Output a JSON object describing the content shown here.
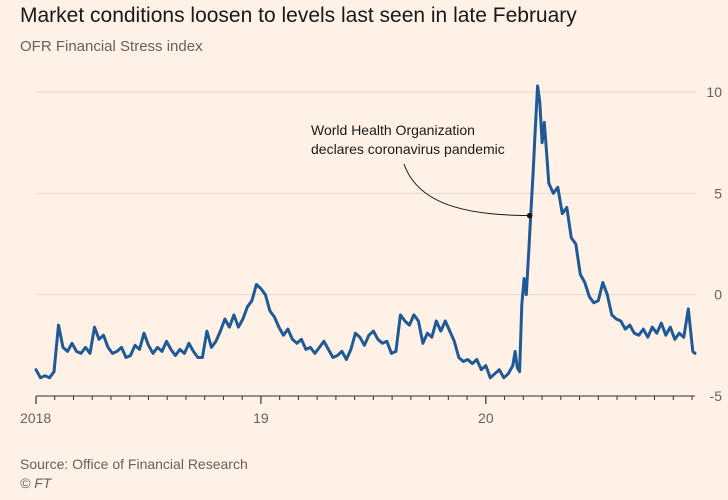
{
  "title": "Market conditions loosen to levels last seen in late February",
  "subtitle": "OFR Financial Stress index",
  "source": "Source: Office of Financial Research",
  "credit": "© FT",
  "colors": {
    "background": "#fff1e5",
    "line": "#1f5a96",
    "grid": "#e3d6c8",
    "text": "#66605c"
  },
  "chart_data": {
    "type": "line",
    "title": "Market conditions loosen to levels last seen in late February",
    "subtitle": "OFR Financial Stress index",
    "xlabel": "",
    "ylabel": "",
    "ylim": [
      -5,
      10
    ],
    "xlim": [
      2018.0,
      2020.93
    ],
    "yticks": [
      10,
      5,
      0,
      -5
    ],
    "xticks": [
      {
        "value": 2018,
        "label": "2018"
      },
      {
        "value": 2019,
        "label": "19"
      },
      {
        "value": 2020,
        "label": "20"
      }
    ],
    "grid": true,
    "y_axis_side": "right",
    "annotation": {
      "lines": [
        "World Health Organization",
        "declares coronavirus pandemic"
      ],
      "x": 2020.195,
      "y": 3.9
    },
    "series": [
      {
        "values": [
          [
            2018.0,
            -3.7
          ],
          [
            2018.02,
            -4.1
          ],
          [
            2018.04,
            -4.0
          ],
          [
            2018.06,
            -4.1
          ],
          [
            2018.08,
            -3.8
          ],
          [
            2018.1,
            -1.5
          ],
          [
            2018.12,
            -2.6
          ],
          [
            2018.14,
            -2.8
          ],
          [
            2018.16,
            -2.4
          ],
          [
            2018.18,
            -2.8
          ],
          [
            2018.2,
            -2.9
          ],
          [
            2018.22,
            -2.6
          ],
          [
            2018.24,
            -2.9
          ],
          [
            2018.26,
            -1.6
          ],
          [
            2018.28,
            -2.2
          ],
          [
            2018.3,
            -2.0
          ],
          [
            2018.32,
            -2.6
          ],
          [
            2018.34,
            -2.9
          ],
          [
            2018.36,
            -2.8
          ],
          [
            2018.38,
            -2.6
          ],
          [
            2018.4,
            -3.1
          ],
          [
            2018.42,
            -3.0
          ],
          [
            2018.44,
            -2.5
          ],
          [
            2018.46,
            -2.7
          ],
          [
            2018.48,
            -1.9
          ],
          [
            2018.5,
            -2.5
          ],
          [
            2018.52,
            -2.9
          ],
          [
            2018.54,
            -2.6
          ],
          [
            2018.56,
            -2.8
          ],
          [
            2018.58,
            -2.3
          ],
          [
            2018.6,
            -2.7
          ],
          [
            2018.62,
            -3.0
          ],
          [
            2018.64,
            -2.7
          ],
          [
            2018.66,
            -2.9
          ],
          [
            2018.68,
            -2.4
          ],
          [
            2018.7,
            -2.8
          ],
          [
            2018.72,
            -3.1
          ],
          [
            2018.74,
            -3.1
          ],
          [
            2018.76,
            -1.8
          ],
          [
            2018.78,
            -2.6
          ],
          [
            2018.8,
            -2.3
          ],
          [
            2018.82,
            -1.8
          ],
          [
            2018.84,
            -1.2
          ],
          [
            2018.86,
            -1.6
          ],
          [
            2018.88,
            -1.0
          ],
          [
            2018.9,
            -1.6
          ],
          [
            2018.92,
            -1.2
          ],
          [
            2018.94,
            -0.6
          ],
          [
            2018.96,
            -0.3
          ],
          [
            2018.98,
            0.5
          ],
          [
            2019.0,
            0.3
          ],
          [
            2019.02,
            0.0
          ],
          [
            2019.04,
            -0.8
          ],
          [
            2019.06,
            -1.1
          ],
          [
            2019.08,
            -1.6
          ],
          [
            2019.1,
            -2.0
          ],
          [
            2019.12,
            -1.7
          ],
          [
            2019.14,
            -2.2
          ],
          [
            2019.16,
            -2.4
          ],
          [
            2019.18,
            -2.2
          ],
          [
            2019.2,
            -2.7
          ],
          [
            2019.22,
            -2.6
          ],
          [
            2019.24,
            -2.9
          ],
          [
            2019.26,
            -2.6
          ],
          [
            2019.28,
            -2.3
          ],
          [
            2019.3,
            -2.7
          ],
          [
            2019.32,
            -3.1
          ],
          [
            2019.34,
            -3.0
          ],
          [
            2019.36,
            -2.8
          ],
          [
            2019.38,
            -3.2
          ],
          [
            2019.4,
            -2.7
          ],
          [
            2019.42,
            -1.9
          ],
          [
            2019.44,
            -2.1
          ],
          [
            2019.46,
            -2.5
          ],
          [
            2019.48,
            -2.0
          ],
          [
            2019.5,
            -1.8
          ],
          [
            2019.52,
            -2.2
          ],
          [
            2019.54,
            -2.4
          ],
          [
            2019.56,
            -2.3
          ],
          [
            2019.58,
            -2.9
          ],
          [
            2019.6,
            -2.8
          ],
          [
            2019.62,
            -1.0
          ],
          [
            2019.64,
            -1.3
          ],
          [
            2019.66,
            -1.5
          ],
          [
            2019.68,
            -1.0
          ],
          [
            2019.7,
            -1.3
          ],
          [
            2019.72,
            -2.4
          ],
          [
            2019.74,
            -1.9
          ],
          [
            2019.76,
            -2.1
          ],
          [
            2019.78,
            -1.3
          ],
          [
            2019.8,
            -1.8
          ],
          [
            2019.82,
            -1.3
          ],
          [
            2019.84,
            -1.8
          ],
          [
            2019.86,
            -2.3
          ],
          [
            2019.88,
            -3.1
          ],
          [
            2019.9,
            -3.3
          ],
          [
            2019.92,
            -3.2
          ],
          [
            2019.94,
            -3.4
          ],
          [
            2019.96,
            -3.2
          ],
          [
            2019.98,
            -3.7
          ],
          [
            2020.0,
            -3.5
          ],
          [
            2020.02,
            -4.1
          ],
          [
            2020.04,
            -3.9
          ],
          [
            2020.06,
            -3.7
          ],
          [
            2020.08,
            -4.1
          ],
          [
            2020.1,
            -3.9
          ],
          [
            2020.12,
            -3.5
          ],
          [
            2020.13,
            -2.8
          ],
          [
            2020.14,
            -3.6
          ],
          [
            2020.15,
            -3.8
          ],
          [
            2020.16,
            -0.5
          ],
          [
            2020.17,
            0.8
          ],
          [
            2020.18,
            0.0
          ],
          [
            2020.19,
            2.0
          ],
          [
            2020.2,
            4.0
          ],
          [
            2020.21,
            6.0
          ],
          [
            2020.22,
            8.2
          ],
          [
            2020.23,
            10.3
          ],
          [
            2020.24,
            9.5
          ],
          [
            2020.25,
            7.5
          ],
          [
            2020.26,
            8.5
          ],
          [
            2020.27,
            7.0
          ],
          [
            2020.28,
            5.5
          ],
          [
            2020.3,
            5.0
          ],
          [
            2020.32,
            5.3
          ],
          [
            2020.34,
            4.0
          ],
          [
            2020.36,
            4.3
          ],
          [
            2020.38,
            2.8
          ],
          [
            2020.4,
            2.5
          ],
          [
            2020.42,
            1.0
          ],
          [
            2020.44,
            0.6
          ],
          [
            2020.46,
            -0.1
          ],
          [
            2020.48,
            -0.4
          ],
          [
            2020.5,
            -0.3
          ],
          [
            2020.52,
            0.6
          ],
          [
            2020.54,
            0.0
          ],
          [
            2020.56,
            -1.0
          ],
          [
            2020.58,
            -1.2
          ],
          [
            2020.6,
            -1.3
          ],
          [
            2020.62,
            -1.7
          ],
          [
            2020.64,
            -1.5
          ],
          [
            2020.66,
            -1.9
          ],
          [
            2020.68,
            -2.0
          ],
          [
            2020.7,
            -1.7
          ],
          [
            2020.72,
            -2.1
          ],
          [
            2020.74,
            -1.6
          ],
          [
            2020.76,
            -1.9
          ],
          [
            2020.78,
            -1.4
          ],
          [
            2020.8,
            -2.0
          ],
          [
            2020.82,
            -1.6
          ],
          [
            2020.84,
            -2.2
          ],
          [
            2020.86,
            -1.9
          ],
          [
            2020.88,
            -2.1
          ],
          [
            2020.9,
            -0.7
          ],
          [
            2020.92,
            -2.8
          ],
          [
            2020.93,
            -2.9
          ]
        ]
      }
    ]
  }
}
